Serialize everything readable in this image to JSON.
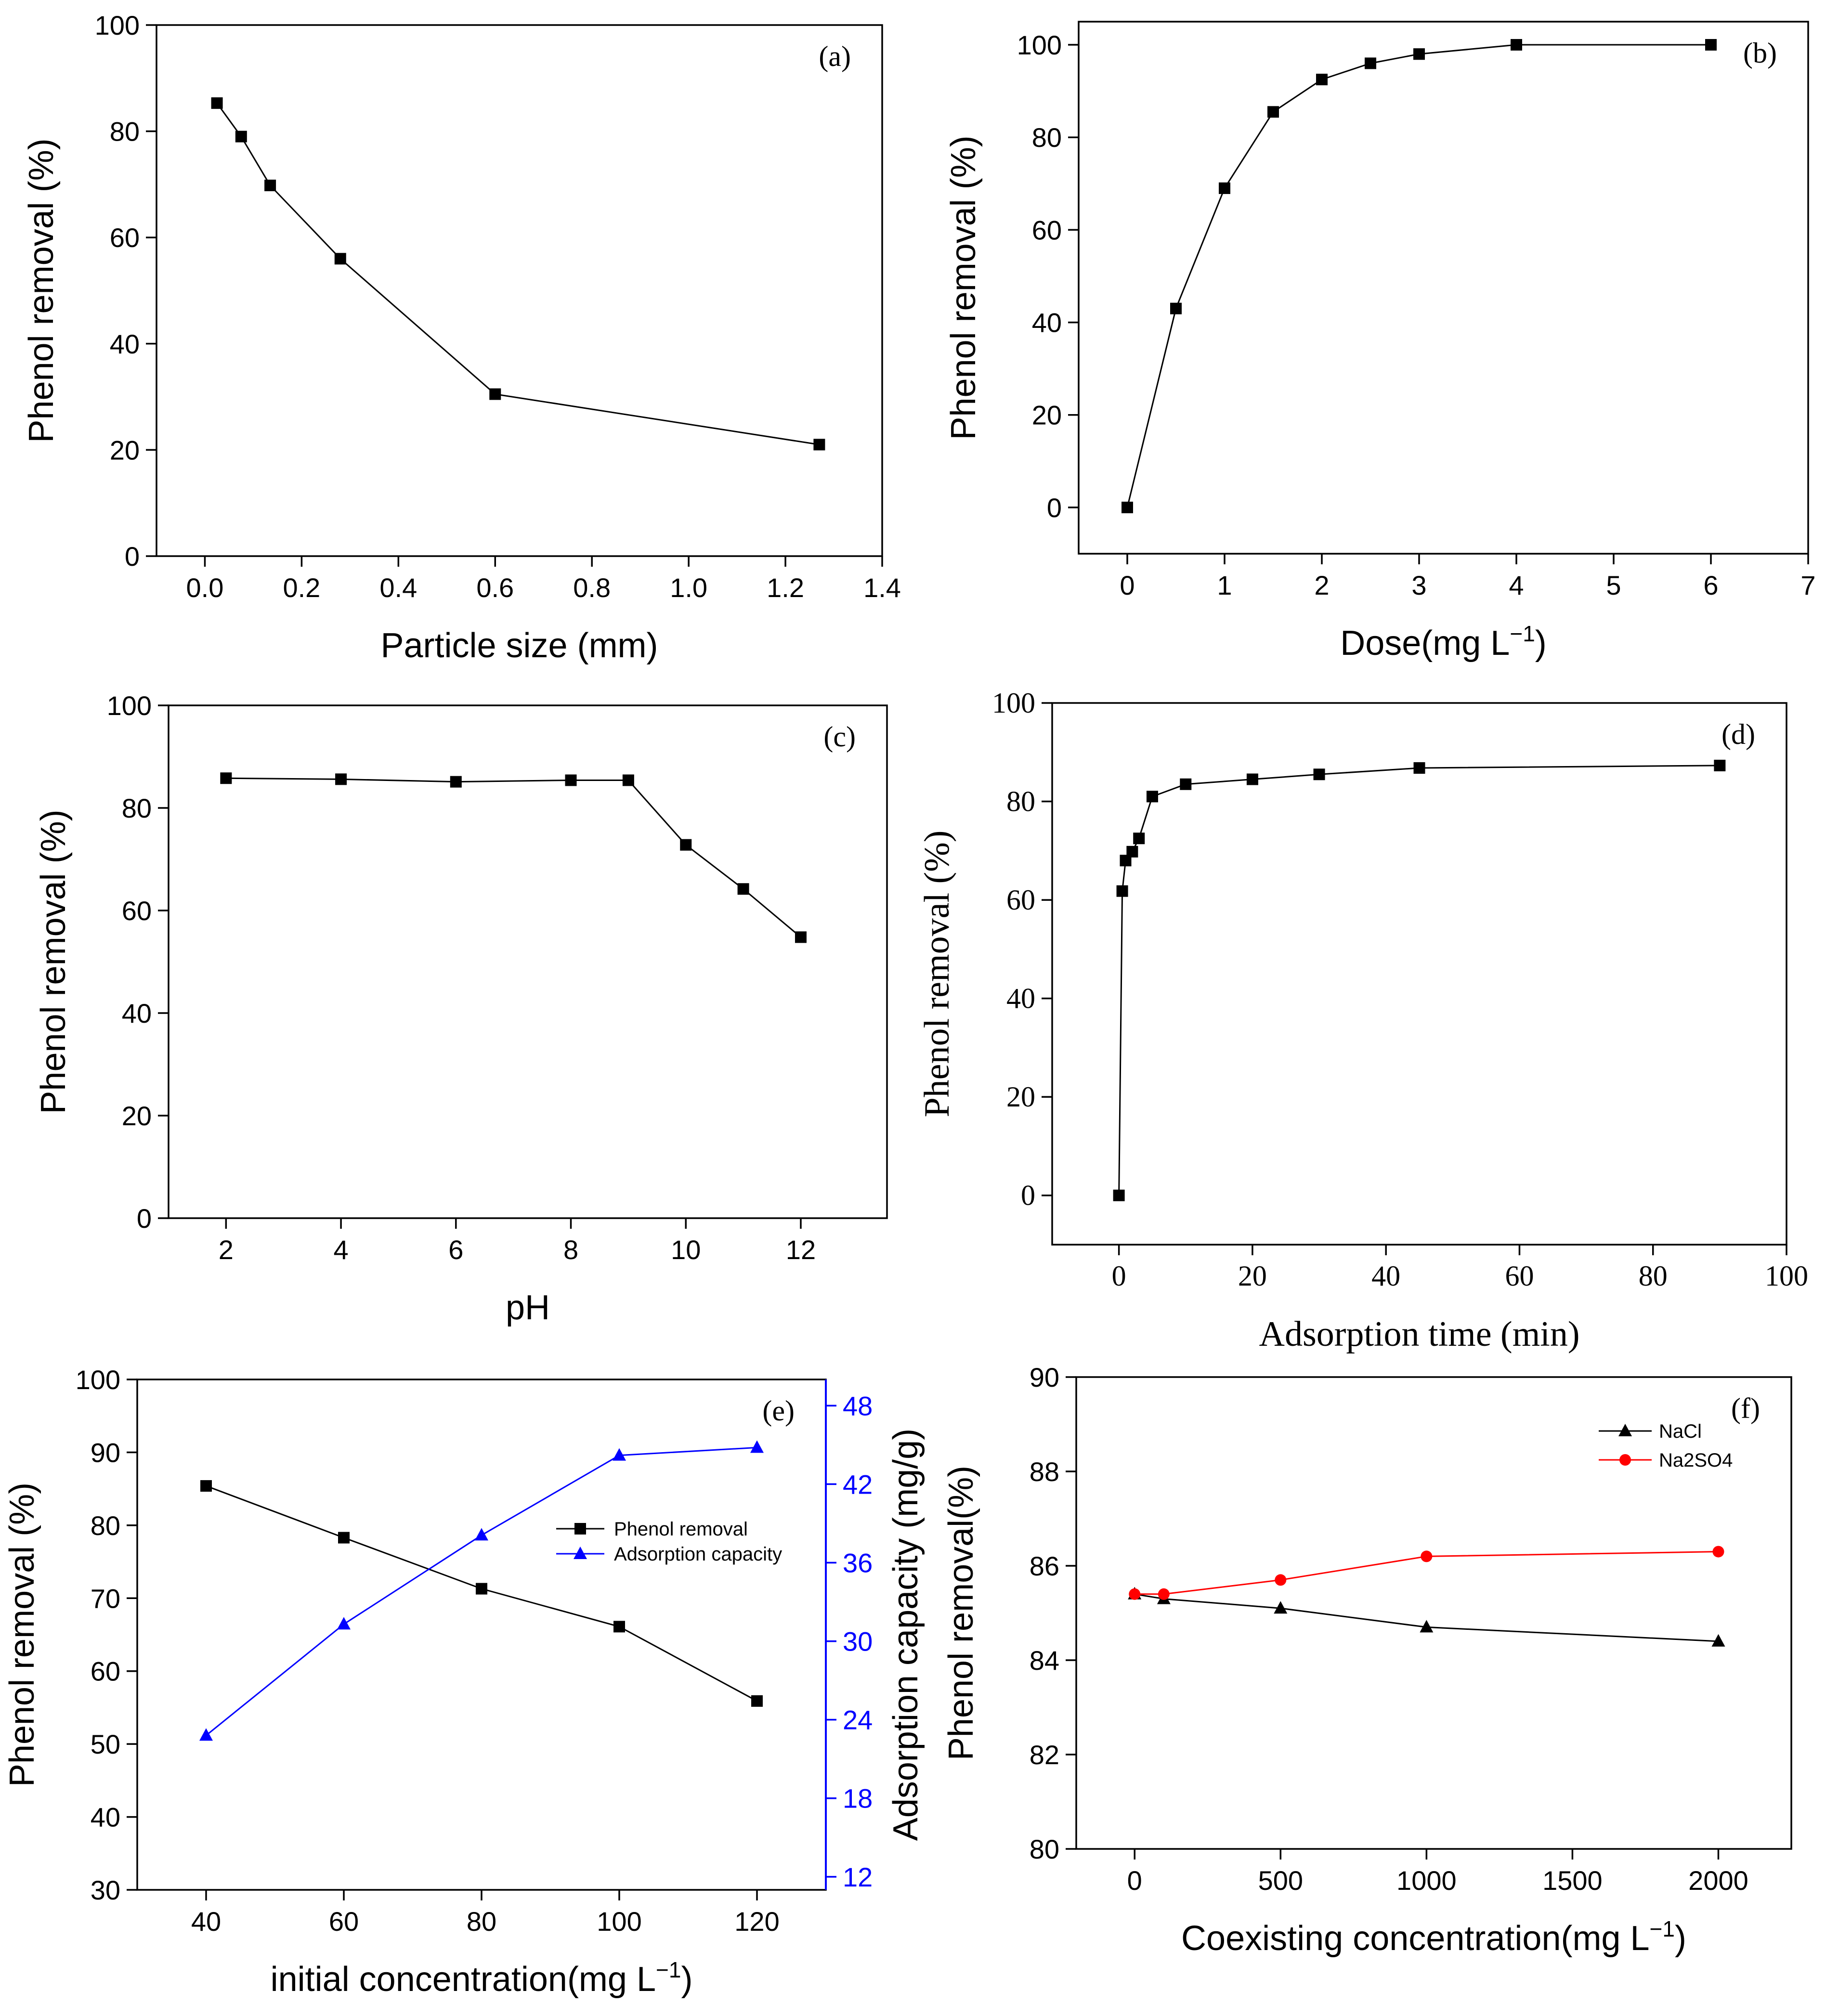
{
  "chart_data": [
    {
      "id": "a",
      "type": "line",
      "panel_label": "(a)",
      "xlabel": "Particle size (mm)",
      "ylabel": "Phenol removal (%)",
      "xlim": [
        -0.1,
        1.4
      ],
      "ylim": [
        0,
        100
      ],
      "xticks": [
        0.0,
        0.2,
        0.4,
        0.6,
        0.8,
        1.0,
        1.2,
        1.4
      ],
      "xtick_labels": [
        "0.0",
        "0.2",
        "0.4",
        "0.6",
        "0.8",
        "1.0",
        "1.2",
        "1.4"
      ],
      "yticks": [
        0,
        20,
        40,
        60,
        80,
        100
      ],
      "ytick_labels": [
        "0",
        "20",
        "40",
        "60",
        "80",
        "100"
      ],
      "font": "sans",
      "series": [
        {
          "name": "Phenol removal",
          "color": "#000000",
          "marker": "square",
          "x": [
            0.025,
            0.075,
            0.135,
            0.28,
            0.6,
            1.27
          ],
          "y": [
            85.3,
            79.0,
            69.8,
            56.0,
            30.5,
            21.0
          ]
        }
      ]
    },
    {
      "id": "b",
      "type": "line",
      "panel_label": "(b)",
      "xlabel": "Dose(mg L",
      "xlabel_sup": "−1",
      "xlabel_end": ")",
      "ylabel": "Phenol removal (%)",
      "xlim": [
        -0.5,
        7
      ],
      "ylim": [
        -10,
        105
      ],
      "xticks": [
        0,
        1,
        2,
        3,
        4,
        5,
        6,
        7
      ],
      "xtick_labels": [
        "0",
        "1",
        "2",
        "3",
        "4",
        "5",
        "6",
        "7"
      ],
      "yticks": [
        0,
        20,
        40,
        60,
        80,
        100
      ],
      "ytick_labels": [
        "0",
        "20",
        "40",
        "60",
        "80",
        "100"
      ],
      "font": "sans",
      "series": [
        {
          "name": "Phenol removal",
          "color": "#000000",
          "marker": "square",
          "x": [
            0,
            0.5,
            1,
            1.5,
            2,
            2.5,
            3,
            4,
            6
          ],
          "y": [
            0,
            43.0,
            69.0,
            85.5,
            92.5,
            96.0,
            98.0,
            100.0,
            100.0
          ]
        }
      ]
    },
    {
      "id": "c",
      "type": "line",
      "panel_label": "(c)",
      "xlabel": "pH",
      "ylabel": "Phenol removal (%)",
      "xlim": [
        1,
        13.5
      ],
      "ylim": [
        0,
        100
      ],
      "xticks": [
        2,
        4,
        6,
        8,
        10,
        12
      ],
      "xtick_labels": [
        "2",
        "4",
        "6",
        "8",
        "10",
        "12"
      ],
      "yticks": [
        0,
        20,
        40,
        60,
        80,
        100
      ],
      "ytick_labels": [
        "0",
        "20",
        "40",
        "60",
        "80",
        "100"
      ],
      "font": "sans",
      "series": [
        {
          "name": "Phenol removal",
          "color": "#000000",
          "marker": "square",
          "x": [
            2,
            4,
            6,
            8,
            9,
            10,
            11,
            12
          ],
          "y": [
            85.8,
            85.6,
            85.1,
            85.4,
            85.4,
            72.8,
            64.2,
            54.8
          ]
        }
      ]
    },
    {
      "id": "d",
      "type": "line",
      "panel_label": "(d)",
      "xlabel": "Adsorption time (min)",
      "ylabel": "Phenol removal (%)",
      "xlim": [
        -10,
        100
      ],
      "ylim": [
        -10,
        100
      ],
      "xticks": [
        0,
        20,
        40,
        60,
        80,
        100
      ],
      "xtick_labels": [
        "0",
        "20",
        "40",
        "60",
        "80",
        "100"
      ],
      "yticks": [
        0,
        20,
        40,
        60,
        80,
        100
      ],
      "ytick_labels": [
        "0",
        "20",
        "40",
        "60",
        "80",
        "100"
      ],
      "font": "serif",
      "series": [
        {
          "name": "Phenol removal",
          "color": "#000000",
          "marker": "square",
          "x": [
            0,
            0.5,
            1,
            2,
            3,
            5,
            10,
            20,
            30,
            45,
            90
          ],
          "y": [
            0,
            61.8,
            68.0,
            69.8,
            72.5,
            81.0,
            83.5,
            84.5,
            85.5,
            86.8,
            87.3
          ]
        }
      ]
    },
    {
      "id": "e",
      "type": "line",
      "panel_label": "(e)",
      "xlabel": "initial concentration(mg L",
      "xlabel_sup": "−1",
      "xlabel_end": ")",
      "ylabel": "Phenol removal (%)",
      "y2label": "Adsorption capacity (mg/g)",
      "xlim": [
        30,
        130
      ],
      "ylim": [
        30,
        100
      ],
      "y2lim": [
        11,
        50
      ],
      "xticks": [
        40,
        60,
        80,
        100,
        120
      ],
      "xtick_labels": [
        "40",
        "60",
        "80",
        "100",
        "120"
      ],
      "yticks": [
        30,
        40,
        50,
        60,
        70,
        80,
        90,
        100
      ],
      "ytick_labels": [
        "30",
        "40",
        "50",
        "60",
        "70",
        "80",
        "90",
        "100"
      ],
      "y2ticks": [
        12,
        18,
        24,
        30,
        36,
        42,
        48
      ],
      "y2tick_labels": [
        "12",
        "18",
        "24",
        "30",
        "36",
        "42",
        "48"
      ],
      "y2color": "#0000ff",
      "font": "sans",
      "legend": [
        "Phenol removal",
        "Adsorption capacity"
      ],
      "series": [
        {
          "name": "Phenol removal",
          "color": "#000000",
          "marker": "square",
          "axis": "y",
          "x": [
            40,
            60,
            80,
            100,
            120
          ],
          "y": [
            85.4,
            78.3,
            71.3,
            66.1,
            55.9
          ]
        },
        {
          "name": "Adsorption capacity",
          "color": "#0000ff",
          "marker": "triangle",
          "axis": "y2",
          "x": [
            40,
            60,
            80,
            100,
            120
          ],
          "y": [
            22.8,
            31.3,
            38.1,
            44.2,
            44.8
          ]
        }
      ]
    },
    {
      "id": "f",
      "type": "line",
      "panel_label": "(f)",
      "xlabel": "Coexisting concentration(mg L",
      "xlabel_sup": "−1",
      "xlabel_end": ")",
      "ylabel": "Phenol removal(%)",
      "xlim": [
        -200,
        2250
      ],
      "ylim": [
        80,
        90
      ],
      "xticks": [
        0,
        500,
        1000,
        1500,
        2000
      ],
      "xtick_labels": [
        "0",
        "500",
        "1000",
        "1500",
        "2000"
      ],
      "yticks": [
        80,
        82,
        84,
        86,
        88,
        90
      ],
      "ytick_labels": [
        "80",
        "82",
        "84",
        "86",
        "88",
        "90"
      ],
      "font": "sans",
      "legend": [
        "NaCl",
        "Na2SO4"
      ],
      "series": [
        {
          "name": "NaCl",
          "color": "#000000",
          "marker": "triangle",
          "x": [
            0,
            100,
            500,
            1000,
            2000
          ],
          "y": [
            85.4,
            85.3,
            85.1,
            84.7,
            84.4
          ]
        },
        {
          "name": "Na2SO4",
          "color": "#ff0000",
          "marker": "circle",
          "x": [
            0,
            100,
            500,
            1000,
            2000
          ],
          "y": [
            85.4,
            85.4,
            85.7,
            86.2,
            86.3
          ]
        }
      ]
    }
  ]
}
